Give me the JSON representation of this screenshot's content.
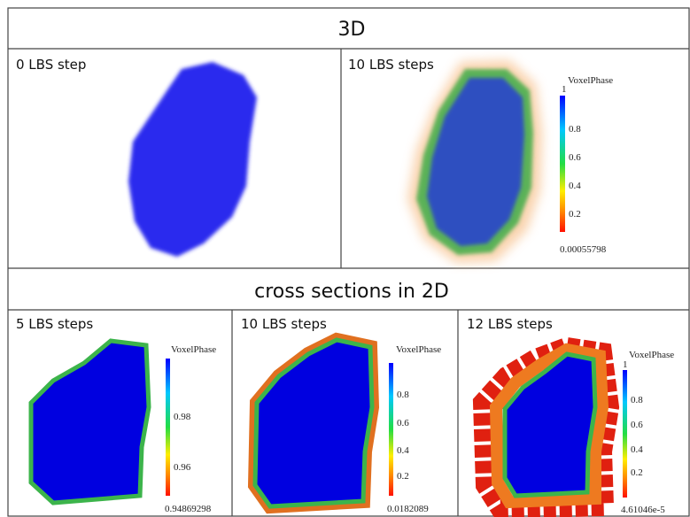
{
  "header": {
    "title": "3D"
  },
  "panels_3d": [
    {
      "label": "0 LBS step"
    },
    {
      "label": "10 LBS steps",
      "colorbar": {
        "title": "VoxelPhase",
        "ticks": [
          "1",
          "0.8",
          "0.6",
          "0.4",
          "0.2"
        ],
        "min": "0.00055798"
      }
    }
  ],
  "section_title": "cross sections in 2D",
  "panels_2d": [
    {
      "label": "5 LBS steps",
      "colorbar": {
        "title": "VoxelPhase",
        "ticks": [
          "0.98",
          "0.96"
        ],
        "min": "0.94869298"
      }
    },
    {
      "label": "10 LBS steps",
      "colorbar": {
        "title": "VoxelPhase",
        "ticks": [
          "0.8",
          "0.6",
          "0.4",
          "0.2"
        ],
        "min": "0.0182089"
      }
    },
    {
      "label": "12 LBS steps",
      "colorbar": {
        "title": "VoxelPhase",
        "ticks": [
          "1",
          "0.8",
          "0.6",
          "0.4",
          "0.2"
        ],
        "min": "4.61046e-5"
      }
    }
  ]
}
